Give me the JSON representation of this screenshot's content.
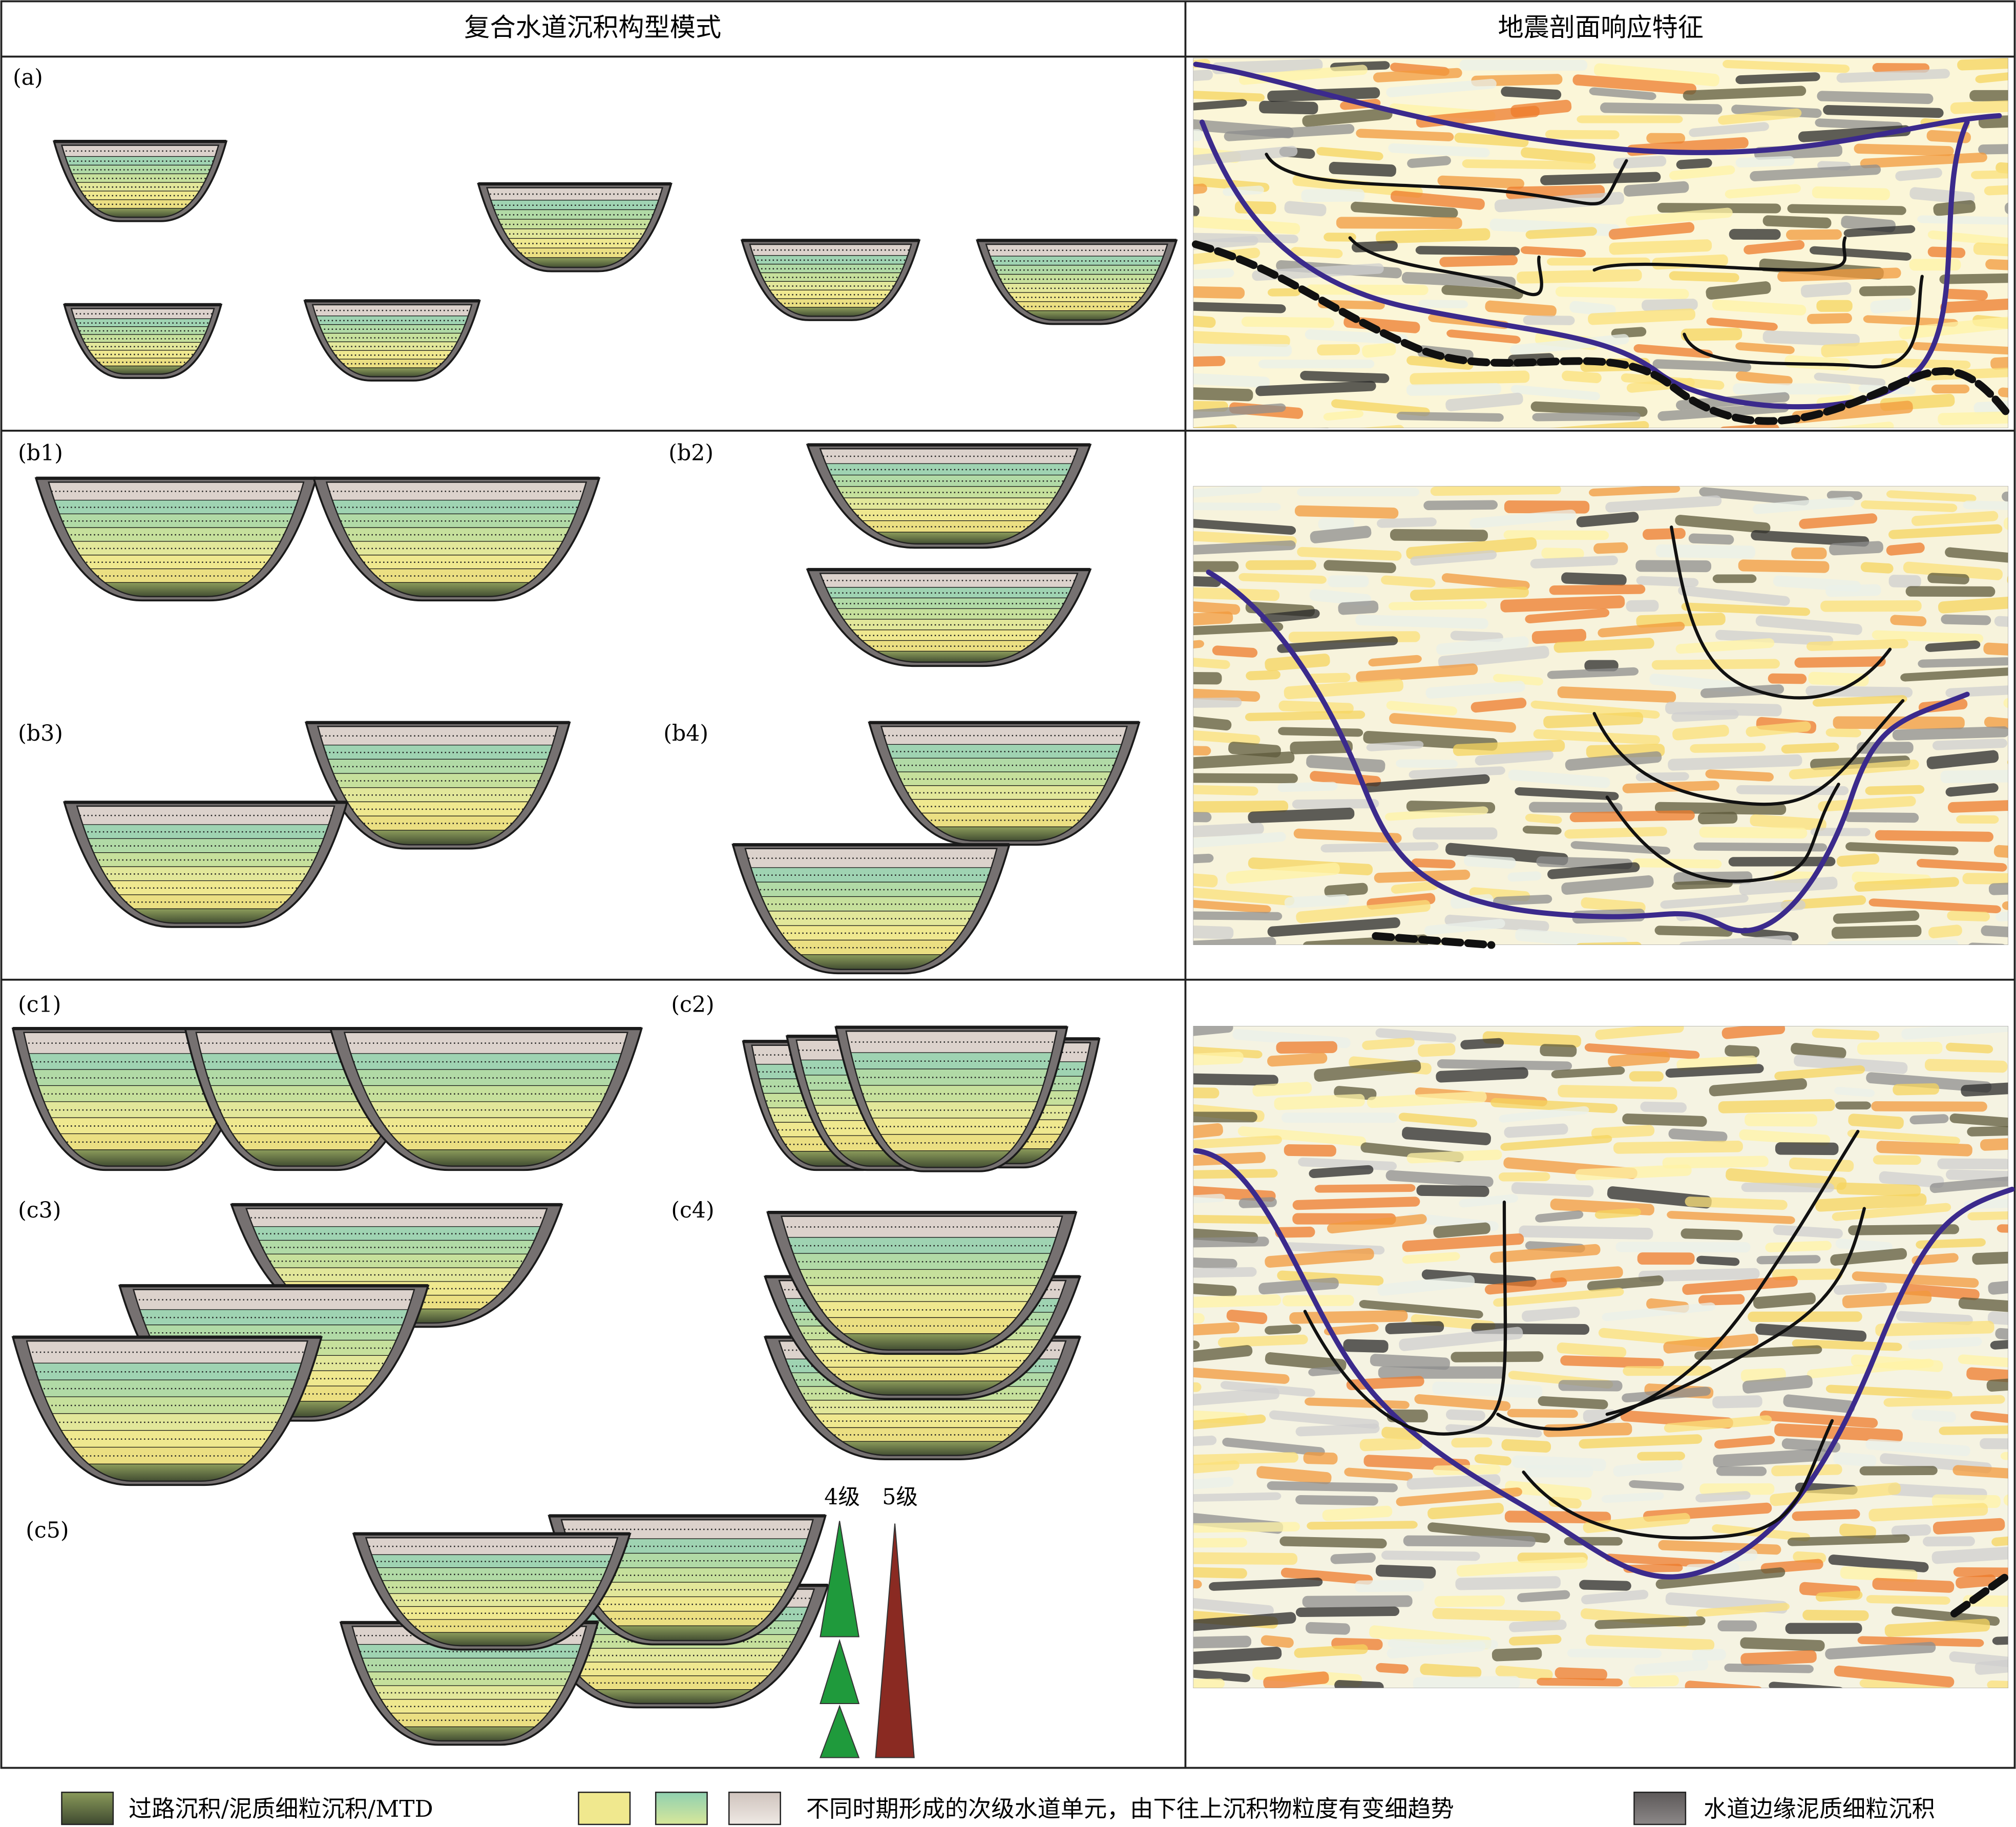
{
  "header": {
    "left": "复合水道沉积构型模式",
    "right": "地震剖面响应特征"
  },
  "panel_labels": [
    "(a)",
    "(b1)",
    "(b2)",
    "(b3)",
    "(b4)",
    "(c1)",
    "(c2)",
    "(c3)",
    "(c4)",
    "(c5)"
  ],
  "hierarchy": {
    "level4": "4级",
    "level5": "5级"
  },
  "legend": [
    "过路沉积/泥质细粒沉积/MTD",
    "不同时期形成的次级水道单元，由下往上沉积物粒度有变细趋势",
    "水道边缘泥质细粒沉积"
  ]
}
